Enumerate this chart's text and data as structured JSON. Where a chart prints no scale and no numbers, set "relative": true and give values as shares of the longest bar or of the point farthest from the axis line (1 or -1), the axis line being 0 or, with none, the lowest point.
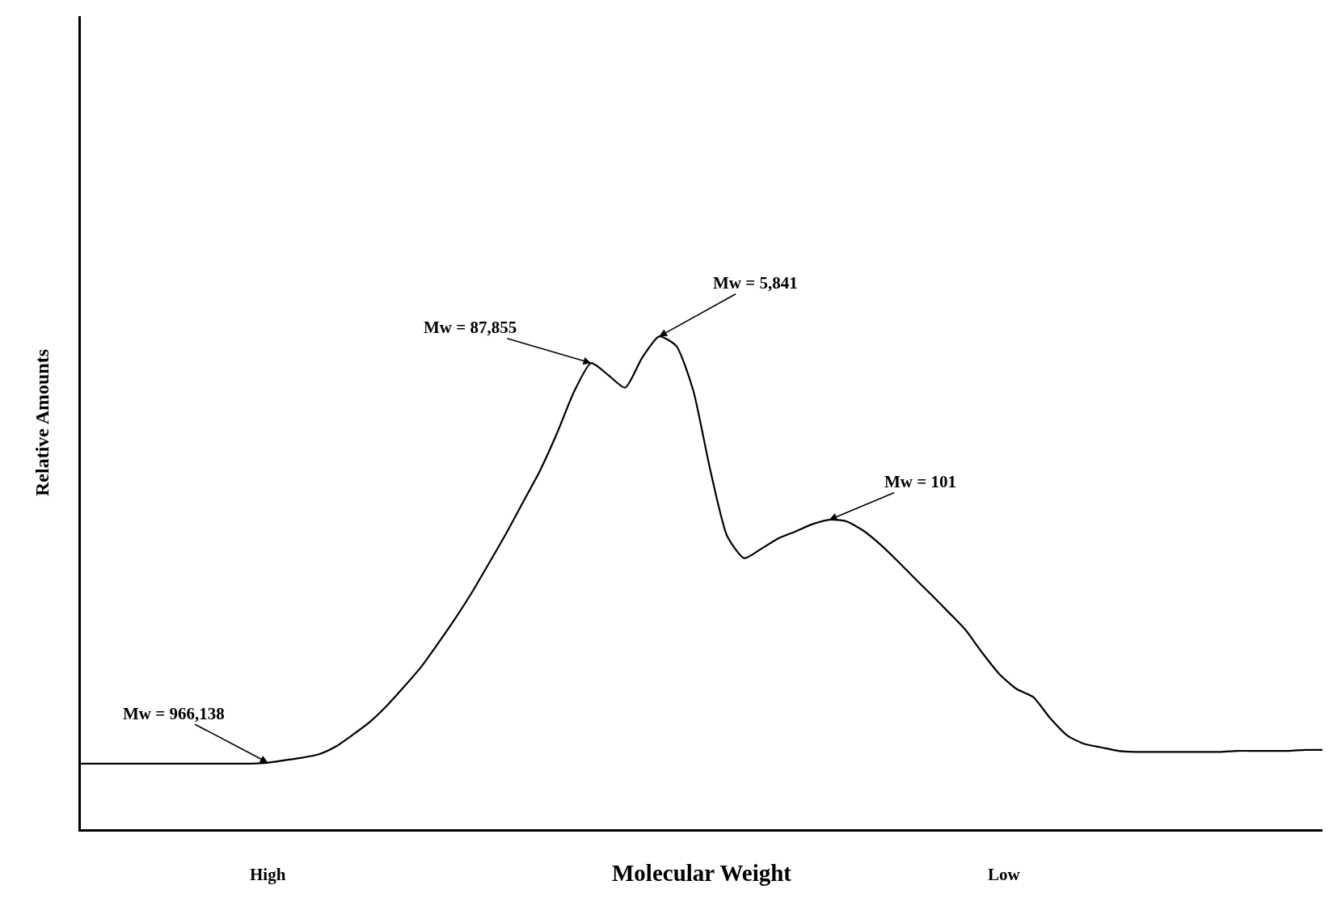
{
  "chart_data": {
    "type": "line",
    "relative": true,
    "xlabel": "Molecular Weight",
    "ylabel": "Relative Amounts",
    "categories": [
      null,
      null,
      null,
      null,
      null,
      null,
      null,
      null,
      null,
      null,
      null,
      null,
      null,
      null,
      null,
      null,
      null,
      null,
      null,
      null,
      null,
      null,
      null,
      null,
      null,
      null,
      null,
      null,
      null,
      null,
      null,
      null,
      null,
      null,
      null,
      null,
      null,
      null,
      null,
      null,
      null,
      null,
      null,
      null,
      null,
      null,
      null,
      null,
      null,
      null,
      null,
      null,
      null,
      null,
      null,
      null,
      null,
      null,
      null,
      null,
      null,
      null,
      null,
      null,
      null,
      null,
      null,
      null,
      null,
      null,
      null,
      null,
      null,
      null
    ],
    "series": [
      {
        "color": "#000000",
        "values": [
          0.133,
          0.133,
          0.133,
          0.133,
          0.133,
          0.133,
          0.133,
          0.133,
          0.133,
          0.133,
          0.133,
          0.135,
          0.14,
          0.145,
          0.152,
          0.168,
          0.192,
          0.218,
          0.251,
          0.289,
          0.329,
          0.377,
          0.427,
          0.481,
          0.54,
          0.6,
          0.664,
          0.728,
          0.804,
          0.888,
          0.946,
          0.922,
          0.896,
          0.957,
          1,
          0.981,
          0.891,
          0.73,
          0.595,
          0.55,
          0.569,
          0.59,
          0.604,
          0.619,
          0.628,
          0.625,
          0.606,
          0.578,
          0.545,
          0.51,
          0.476,
          0.441,
          0.405,
          0.358,
          0.315,
          0.285,
          0.268,
          0.225,
          0.19,
          0.173,
          0.166,
          0.159,
          0.157,
          0.157,
          0.157,
          0.157,
          0.157,
          0.157,
          0.159,
          0.159,
          0.159,
          0.159,
          0.161,
          0.161
        ]
      }
    ],
    "annotations": [
      "Mw = 966,138",
      "Mw = 87,855",
      "Mw = 5,841",
      "Mw = 101",
      "High",
      "Low"
    ],
    "marker": "none",
    "line_style": "solid"
  }
}
